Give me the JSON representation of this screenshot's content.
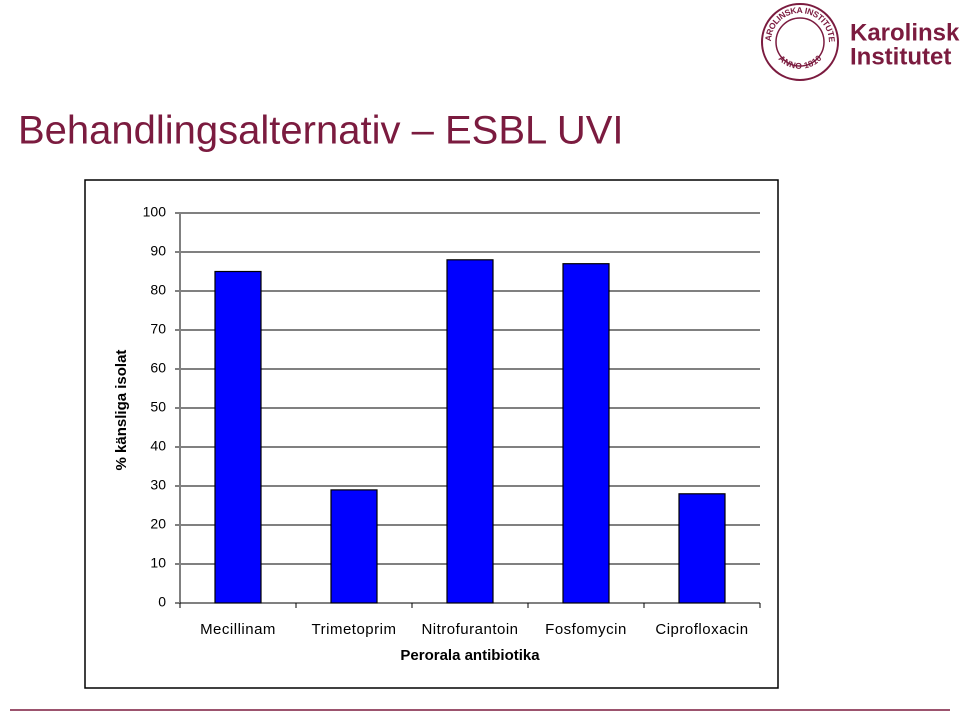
{
  "title": "Behandlingsalternativ – ESBL UVI",
  "logo": {
    "name": [
      "Karolinska",
      "Institutet"
    ],
    "seal_top": "KAROLINSKA INSTITUTET",
    "seal_bottom": "ANNO 1810"
  },
  "chart_data": {
    "type": "bar",
    "categories": [
      "Mecillinam",
      "Trimetoprim",
      "Nitrofurantoin",
      "Fosfomycin",
      "Ciprofloxacin"
    ],
    "values": [
      85,
      29,
      88,
      87,
      28
    ],
    "color": "#0000ff",
    "x_label": "Perorala antibiotika",
    "y_label": "% känsliga isolat",
    "ylim": [
      0,
      100
    ],
    "yticks": [
      0,
      10,
      20,
      30,
      40,
      50,
      60,
      70,
      80,
      90,
      100
    ],
    "grid": true
  }
}
